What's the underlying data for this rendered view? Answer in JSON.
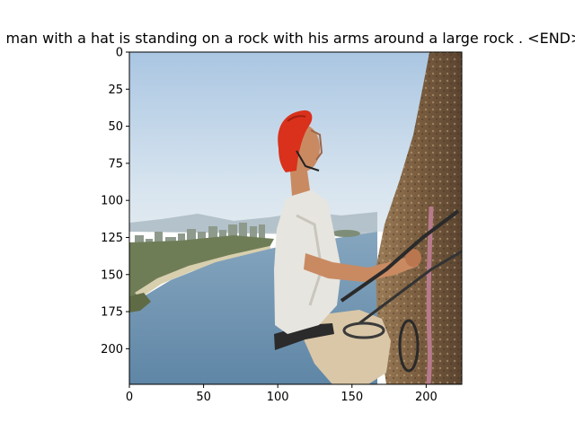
{
  "figure": {
    "title": "a man with a hat is standing on a rock with his arms around a large rock . <END>"
  },
  "image_axes": {
    "x_ticks": [
      0,
      50,
      100,
      150,
      200
    ],
    "y_ticks": [
      0,
      25,
      50,
      75,
      100,
      125,
      150,
      175,
      200
    ],
    "x_range": [
      0,
      224
    ],
    "y_range": [
      0,
      224
    ],
    "y_inverted": true
  },
  "colors": {
    "sky_top": "#b7cfe6",
    "sky_horizon": "#dbe7f1",
    "water": "#6f94b1",
    "rock": "#8b6b48",
    "helmet": "#d9311b",
    "shirt": "#e9e7e2",
    "skin": "#c98a62",
    "shorts": "#d9c7a8",
    "rope": "#b77a8c"
  }
}
